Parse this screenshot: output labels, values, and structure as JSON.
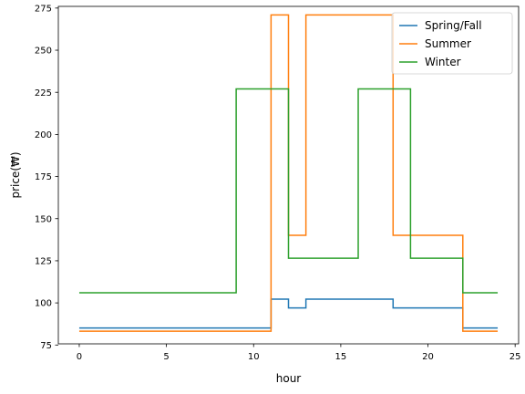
{
  "chart_data": {
    "type": "line",
    "title": "",
    "xlabel": "hour",
    "ylabel": "price(₩)",
    "xlim": [
      -1.2,
      25.2
    ],
    "ylim": [
      75.7,
      276.0
    ],
    "xticks": [
      0,
      5,
      10,
      15,
      20,
      25
    ],
    "yticks": [
      75,
      100,
      125,
      150,
      175,
      200,
      225,
      250,
      275
    ],
    "grid": false,
    "legend_position": "top-right",
    "step": "post",
    "x": [
      0,
      11,
      12,
      13,
      18,
      22,
      24
    ],
    "series": [
      {
        "name": "Spring/Fall",
        "color": "#1f77b4",
        "values": [
          85.1,
          102.2,
          97.0,
          102.2,
          97.0,
          85.1,
          85.1
        ]
      },
      {
        "name": "Summer",
        "color": "#ff7f0e",
        "values": [
          83.2,
          270.9,
          140.1,
          270.9,
          140.1,
          83.2,
          83.2
        ]
      },
      {
        "name": "Winter",
        "color": "#2ca02c",
        "values": [
          106.0,
          227.0,
          126.5,
          227.0,
          126.5,
          106.0,
          106.0
        ],
        "x": [
          0,
          9,
          12,
          16,
          19,
          22,
          24
        ]
      }
    ]
  }
}
